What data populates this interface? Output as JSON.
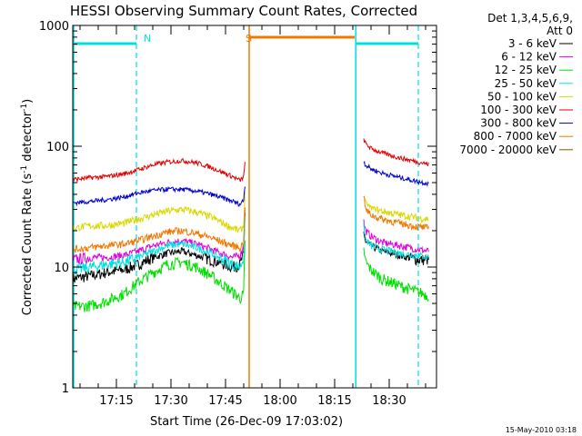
{
  "chart_data": {
    "type": "line",
    "title": "HESSI Observing Summary Count Rates, Corrected",
    "xlabel": "Start Time (26-Dec-09 17:03:02)",
    "ylabel_main": "Corrected Count Rate (s",
    "ylabel_sup1": "-1",
    "ylabel_mid": " detector",
    "ylabel_sup2": "-1",
    "ylabel_end": ")",
    "x_range_minutes": [
      0,
      100
    ],
    "yscale": "log",
    "ylim": [
      1,
      1000
    ],
    "x_ticks": [
      {
        "minute": 12,
        "label": "17:15"
      },
      {
        "minute": 27,
        "label": "17:30"
      },
      {
        "minute": 42,
        "label": "17:45"
      },
      {
        "minute": 57,
        "label": "18:00"
      },
      {
        "minute": 72,
        "label": "18:15"
      },
      {
        "minute": 87,
        "label": "18:30"
      }
    ],
    "y_ticks": [
      {
        "value": 1,
        "label": "1"
      },
      {
        "value": 10,
        "label": "10"
      },
      {
        "value": 100,
        "label": "100"
      },
      {
        "value": 1000,
        "label": "1000"
      }
    ],
    "legend_header": [
      "Det 1,3,4,5,6,9,",
      "Att 0"
    ],
    "legend_position": "right",
    "series": [
      {
        "name": "3 - 6 keV",
        "color": "#000000",
        "x": [
          0,
          5,
          9,
          14,
          18,
          22,
          26,
          30,
          34,
          38,
          44,
          46,
          47,
          47.5,
          80,
          80.5,
          82,
          85,
          90,
          95,
          98
        ],
        "y": [
          8,
          8.5,
          9,
          9.5,
          10.5,
          12,
          13,
          13.5,
          12.5,
          11.5,
          10,
          10.5,
          13,
          40,
          20,
          16,
          15,
          13.5,
          12.5,
          11.5,
          11.5
        ]
      },
      {
        "name": "6 - 12 keV",
        "color": "#e000e0",
        "x": [
          0,
          5,
          9,
          14,
          18,
          22,
          26,
          30,
          34,
          38,
          44,
          46,
          47,
          47.5,
          80,
          80.5,
          82,
          85,
          90,
          95,
          98
        ],
        "y": [
          11.5,
          12,
          12,
          12.5,
          13.5,
          15,
          16,
          16.5,
          15.5,
          14,
          12,
          12.5,
          15,
          45,
          24,
          20,
          18,
          16,
          15,
          14,
          13.5
        ]
      },
      {
        "name": "12 - 25 keV",
        "color": "#00e000",
        "x": [
          0,
          5,
          9,
          14,
          18,
          22,
          26,
          30,
          34,
          38,
          44,
          46,
          47,
          47.5,
          80,
          80.5,
          82,
          85,
          90,
          95,
          98
        ],
        "y": [
          4.7,
          4.8,
          5.2,
          6,
          7.5,
          9,
          10.5,
          11,
          10,
          8.5,
          6.2,
          5.5,
          6,
          25,
          14,
          11,
          9.5,
          8,
          7,
          6.2,
          5.8
        ]
      },
      {
        "name": "25 - 50 keV",
        "color": "#00e0e0",
        "x": [
          0,
          5,
          9,
          14,
          18,
          22,
          26,
          30,
          34,
          38,
          44,
          46,
          47,
          47.5,
          80,
          80.5,
          82,
          85,
          90,
          95,
          98
        ],
        "y": [
          9.5,
          10,
          10.5,
          11,
          12,
          13.5,
          15,
          15.5,
          14.5,
          13,
          10.5,
          10,
          12,
          35,
          22,
          17,
          15,
          14,
          13,
          12.5,
          12
        ]
      },
      {
        "name": "50 - 100 keV",
        "color": "#d8d800",
        "x": [
          0,
          5,
          9,
          14,
          18,
          22,
          26,
          30,
          34,
          38,
          44,
          46,
          47,
          47.5,
          80,
          80.5,
          82,
          85,
          90,
          95,
          98
        ],
        "y": [
          21,
          22,
          22,
          23,
          25,
          27,
          29,
          30,
          28.5,
          26,
          21,
          20,
          22,
          55,
          40,
          34,
          31,
          29,
          27,
          25.5,
          25
        ]
      },
      {
        "name": "100 - 300 keV",
        "color": "#e00000",
        "x": [
          0,
          5,
          9,
          14,
          18,
          22,
          26,
          30,
          34,
          38,
          44,
          46,
          47,
          47.5,
          80,
          80.5,
          82,
          85,
          90,
          95,
          98
        ],
        "y": [
          53,
          55,
          56,
          59,
          64,
          70,
          74,
          76,
          73,
          67,
          56,
          52,
          56,
          80,
          115,
          105,
          96,
          88,
          80,
          74,
          71
        ]
      },
      {
        "name": "300 - 800 keV",
        "color": "#0000d0",
        "x": [
          0,
          5,
          9,
          14,
          18,
          22,
          26,
          30,
          34,
          38,
          44,
          46,
          47,
          47.5,
          80,
          80.5,
          82,
          85,
          90,
          95,
          98
        ],
        "y": [
          34,
          35,
          36,
          38,
          41,
          43,
          44,
          44,
          42.5,
          40,
          35,
          33,
          36,
          55,
          75,
          70,
          65,
          60,
          55,
          51,
          49
        ]
      },
      {
        "name": "800 - 7000 keV",
        "color": "#f07800",
        "x": [
          0,
          5,
          9,
          14,
          18,
          22,
          26,
          30,
          34,
          38,
          44,
          46,
          47,
          47.5,
          48,
          77.5,
          78,
          80,
          80.5,
          82,
          85,
          90,
          95,
          98
        ],
        "y": [
          14,
          14.5,
          15,
          15.5,
          16.5,
          18,
          19.5,
          20,
          19,
          17.5,
          15,
          14.5,
          16,
          45,
          780,
          780,
          780,
          40,
          30,
          27,
          25,
          23,
          21.5,
          21
        ]
      },
      {
        "name": "7000 - 20000 keV",
        "color": "#7a5a00",
        "x": [],
        "y": []
      }
    ],
    "annotations": [
      {
        "text": "N",
        "minute": 18.5,
        "color": "#00e0e0"
      },
      {
        "text": "S",
        "minute": 46.5,
        "color": "#f07800"
      }
    ]
  },
  "footer": {
    "timestamp": "15-May-2010 03:18"
  }
}
